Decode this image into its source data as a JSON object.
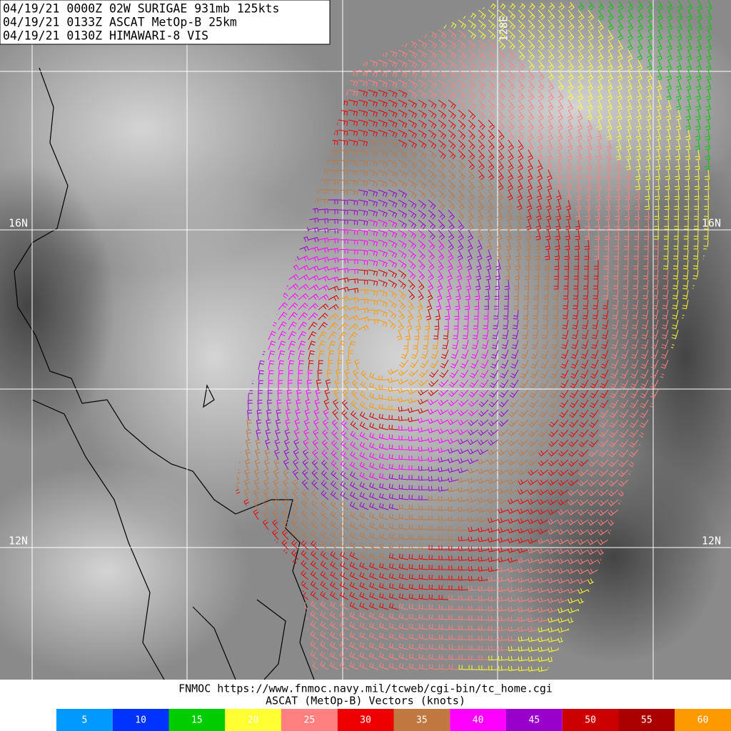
{
  "header": {
    "lines": [
      "04/19/21 0000Z  02W SURIGAE 931mb 125kts",
      "04/19/21 0133Z  ASCAT MetOp-B 25km",
      "04/19/21 0130Z  HIMAWARI-8 VIS"
    ]
  },
  "grid_labels": {
    "lat_left": [
      "16N",
      "12N"
    ],
    "lat_right": [
      "16N",
      "12N"
    ],
    "lon": "128E"
  },
  "footer": {
    "source": "FNMOC https://www.fnmoc.navy.mil/tcweb/cgi-bin/tc_home.cgi",
    "legend_title": "ASCAT (MetOp-B) Vectors (knots)"
  },
  "legend": [
    {
      "label": 5,
      "color": "#0099ff"
    },
    {
      "label": 10,
      "color": "#0033ff"
    },
    {
      "label": 15,
      "color": "#00cc00"
    },
    {
      "label": 20,
      "color": "#ffff33"
    },
    {
      "label": 25,
      "color": "#ff8080"
    },
    {
      "label": 30,
      "color": "#ee0000"
    },
    {
      "label": 35,
      "color": "#c07840"
    },
    {
      "label": 40,
      "color": "#ff00ff"
    },
    {
      "label": 45,
      "color": "#9900cc"
    },
    {
      "label": 50,
      "color": "#cc0000"
    },
    {
      "label": 55,
      "color": "#aa0000"
    },
    {
      "label": 60,
      "color": "#ff9900"
    }
  ]
}
